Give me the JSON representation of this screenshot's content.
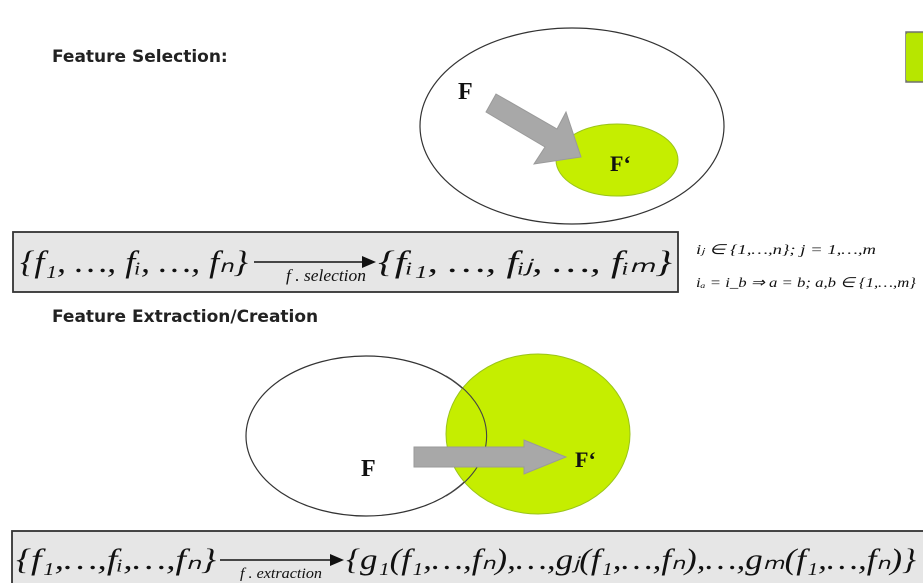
{
  "colors": {
    "lime": "#c6f200",
    "lime_dark": "#9acd12",
    "arrow_gray": "#a8a8a8",
    "formula_box_bg": "#e6e6e6"
  },
  "selection": {
    "heading": "Feature Selection:",
    "set_label": "F",
    "subset_label": "F‘",
    "formula_left": "{f₁, …, fᵢ, …, fₙ}",
    "arrow_label": "f . selection",
    "formula_right": "{fᵢ₁, …, fᵢⱼ, …, fᵢₘ}",
    "condition_1": "iⱼ ∈ {1,…,n}; j = 1,…,m",
    "condition_2": "iₐ = i_b ⇒ a = b;  a,b ∈ {1,…,m}"
  },
  "extraction": {
    "heading": "Feature Extraction/Creation",
    "set_label": "F",
    "subset_label": "F‘",
    "formula_left": "{f₁,…,fᵢ,…,fₙ}",
    "arrow_label": "f . extraction",
    "formula_right": "{g₁(f₁,…,fₙ),…,gⱼ(f₁,…,fₙ),…,gₘ(f₁,…,fₙ)}"
  },
  "legend": {
    "swatch_icon": "green-square-icon"
  }
}
